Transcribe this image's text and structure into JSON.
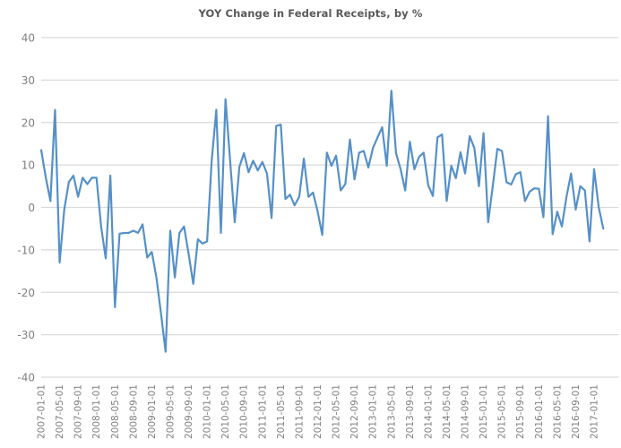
{
  "chart_data": {
    "type": "line",
    "title": "YOY Change in Federal Receipts, by %",
    "xlabel": "",
    "ylabel": "",
    "ylim": [
      -40,
      40
    ],
    "grid": "horizontal",
    "legend": "none",
    "y_ticks": [
      40,
      30,
      20,
      10,
      0,
      -10,
      -20,
      -30,
      -40
    ],
    "x_tick_labels": [
      "2007-01-01",
      "2007-05-01",
      "2007-09-01",
      "2008-01-01",
      "2008-05-01",
      "2008-09-01",
      "2009-01-01",
      "2009-05-01",
      "2009-09-01",
      "2010-01-01",
      "2010-05-01",
      "2010-09-01",
      "2011-01-01",
      "2011-05-01",
      "2011-09-01",
      "2012-01-01",
      "2012-05-01",
      "2012-09-01",
      "2013-01-01",
      "2013-05-01",
      "2013-09-01",
      "2014-01-01",
      "2014-05-01",
      "2014-09-01",
      "2015-01-01",
      "2015-05-01",
      "2015-09-01",
      "2016-01-01",
      "2016-05-01",
      "2016-09-01",
      "2017-01-01"
    ],
    "x_tick_interval_months": 4,
    "x": [
      "2007-01",
      "2007-02",
      "2007-03",
      "2007-04",
      "2007-05",
      "2007-06",
      "2007-07",
      "2007-08",
      "2007-09",
      "2007-10",
      "2007-11",
      "2007-12",
      "2008-01",
      "2008-02",
      "2008-03",
      "2008-04",
      "2008-05",
      "2008-06",
      "2008-07",
      "2008-08",
      "2008-09",
      "2008-10",
      "2008-11",
      "2008-12",
      "2009-01",
      "2009-02",
      "2009-03",
      "2009-04",
      "2009-05",
      "2009-06",
      "2009-07",
      "2009-08",
      "2009-09",
      "2009-10",
      "2009-11",
      "2009-12",
      "2010-01",
      "2010-02",
      "2010-03",
      "2010-04",
      "2010-05",
      "2010-06",
      "2010-07",
      "2010-08",
      "2010-09",
      "2010-10",
      "2010-11",
      "2010-12",
      "2011-01",
      "2011-02",
      "2011-03",
      "2011-04",
      "2011-05",
      "2011-06",
      "2011-07",
      "2011-08",
      "2011-09",
      "2011-10",
      "2011-11",
      "2011-12",
      "2012-01",
      "2012-02",
      "2012-03",
      "2012-04",
      "2012-05",
      "2012-06",
      "2012-07",
      "2012-08",
      "2012-09",
      "2012-10",
      "2012-11",
      "2012-12",
      "2013-01",
      "2013-02",
      "2013-03",
      "2013-04",
      "2013-05",
      "2013-06",
      "2013-07",
      "2013-08",
      "2013-09",
      "2013-10",
      "2013-11",
      "2013-12",
      "2014-01",
      "2014-02",
      "2014-03",
      "2014-04",
      "2014-05",
      "2014-06",
      "2014-07",
      "2014-08",
      "2014-09",
      "2014-10",
      "2014-11",
      "2014-12",
      "2015-01",
      "2015-02",
      "2015-03",
      "2015-04",
      "2015-05",
      "2015-06",
      "2015-07",
      "2015-08",
      "2015-09",
      "2015-10",
      "2015-11",
      "2015-12",
      "2016-01",
      "2016-02",
      "2016-03",
      "2016-04",
      "2016-05",
      "2016-06",
      "2016-07",
      "2016-08",
      "2016-09",
      "2016-10",
      "2016-11",
      "2016-12",
      "2017-01",
      "2017-02",
      "2017-03"
    ],
    "series": [
      {
        "name": "YOY % change in federal receipts",
        "values": [
          13.5,
          7,
          1.5,
          23,
          -13,
          -0.5,
          6,
          7.5,
          2.5,
          7,
          5.5,
          7,
          7,
          -4.5,
          -12,
          7.5,
          -23.5,
          -6.2,
          -6,
          -6,
          -5.5,
          -6,
          -4,
          -11.8,
          -10.5,
          -16.5,
          -25,
          -34,
          -5.5,
          -16.5,
          -6,
          -4.5,
          -11,
          -18,
          -7.5,
          -8.5,
          -8,
          11,
          23,
          -6,
          25.5,
          11,
          -3.5,
          9.5,
          12.8,
          8.3,
          11,
          8.7,
          10.7,
          8,
          -2.5,
          19.2,
          19.5,
          2,
          3,
          0.5,
          2.5,
          11.5,
          2.5,
          3.5,
          -1,
          -6.5,
          12.9,
          9.8,
          12.2,
          4,
          5.5,
          16,
          6.6,
          12.9,
          13.3,
          9.4,
          14,
          16.5,
          18.9,
          9.8,
          27.5,
          12.8,
          9,
          4,
          15.5,
          9,
          11.9,
          12.9,
          5.2,
          2.7,
          16.5,
          17.2,
          1.5,
          9.8,
          6.9,
          13,
          8,
          16.8,
          14,
          5,
          17.5,
          -3.5,
          5,
          13.8,
          13.3,
          5.9,
          5.4,
          7.8,
          8.3,
          1.5,
          3.7,
          4.5,
          4.4,
          -2.3,
          21.5,
          -6.3,
          -1,
          -4.5,
          2.5,
          8,
          -0.5,
          5,
          4,
          -8,
          9,
          0,
          -5
        ]
      }
    ],
    "colors": {
      "line": "#5590C8",
      "gridline": "#D9D9D9",
      "tick_label": "#7F7F7F",
      "title": "#595959",
      "background": "#FFFFFF"
    }
  }
}
